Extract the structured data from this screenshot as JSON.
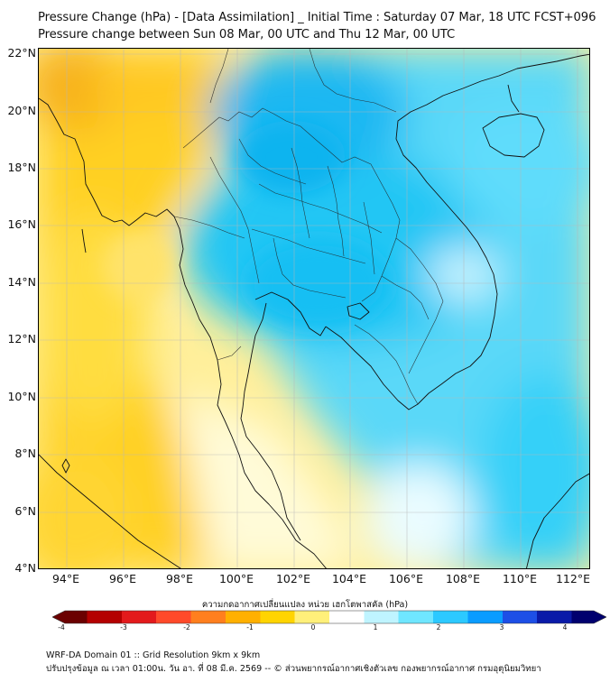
{
  "title": {
    "line1": "Pressure Change (hPa) - [Data Assimilation] _ Initial Time : Saturday 07 Mar, 18 UTC FCST+096",
    "line2": "Pressure change between Sun 08 Mar, 00 UTC and Thu 12 Mar, 00 UTC"
  },
  "axes": {
    "lat_labels": [
      "22°N",
      "20°N",
      "18°N",
      "16°N",
      "14°N",
      "12°N",
      "10°N",
      "8°N",
      "6°N",
      "4°N"
    ],
    "lon_labels": [
      "94°E",
      "96°E",
      "98°E",
      "100°E",
      "102°E",
      "104°E",
      "106°E",
      "108°E",
      "110°E",
      "112°E"
    ]
  },
  "colorbar": {
    "title": "ความกดอากาศเปลี่ยนแปลง หน่วย เฮกโตพาสคัล (hPa)",
    "ticks": [
      "-4",
      "-3",
      "-2",
      "-1",
      "0",
      "1",
      "2",
      "3",
      "4"
    ],
    "colors": [
      "#6b0000",
      "#b40000",
      "#e31a1c",
      "#ff4a2a",
      "#ff7f1e",
      "#ffb000",
      "#ffd400",
      "#fff07a",
      "#ffffff",
      "#bff4ff",
      "#6fe6ff",
      "#2cc9ff",
      "#0a9cff",
      "#1d4fe6",
      "#0a1aa8",
      "#00006e"
    ]
  },
  "footer": {
    "line1": "WRF-DA Domain 01 :: Grid Resolution 9km x 9km",
    "line2": "ปรับปรุงข้อมูล ณ เวลา 01:00น. วัน อา. ที่ 08 มี.ค. 2569 -- © ส่วนพยากรณ์อากาศเชิงตัวเลข กองพยากรณ์อากาศ กรมอุตุนิยมวิทยา"
  },
  "map_colors": {
    "positive": "#20c8f4",
    "negative": "#ffd21a",
    "coastline": "#111111"
  }
}
